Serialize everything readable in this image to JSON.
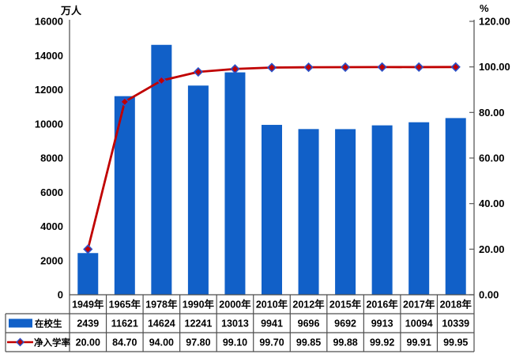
{
  "chart_data": {
    "type": "bar",
    "subtype": "combo-bar-line-with-data-table",
    "categories": [
      "1949年",
      "1965年",
      "1978年",
      "1990年",
      "2000年",
      "2010年",
      "2012年",
      "2015年",
      "2016年",
      "2017年",
      "2018年"
    ],
    "series": [
      {
        "name": "在校生",
        "type": "bar",
        "axis": "left",
        "color": "#1160C8",
        "values": [
          2439,
          11621,
          14624,
          12241,
          13013,
          9941,
          9696,
          9692,
          9913,
          10094,
          10339
        ],
        "decimals": 0
      },
      {
        "name": "净入学率",
        "type": "line",
        "axis": "right",
        "color": "#C00000",
        "marker_shape": "diamond",
        "marker_fill": "#C00000",
        "marker_stroke": "#2B50C8",
        "values": [
          20.0,
          84.7,
          94.0,
          97.8,
          99.1,
          99.7,
          99.85,
          99.88,
          99.92,
          99.91,
          99.95
        ],
        "decimals": 2
      }
    ],
    "left_axis": {
      "title": "万人",
      "min": 0,
      "max": 16000,
      "step": 2000,
      "decimals": 0
    },
    "right_axis": {
      "title": "%",
      "min": 0,
      "max": 120,
      "step": 20,
      "decimals": 2
    },
    "grid": false,
    "legend_position": "data-table-left",
    "axis_line_color": "#595959",
    "table_border_color": "#4D4D4D",
    "text_color": "#000000",
    "background": "#FFFFFF"
  }
}
